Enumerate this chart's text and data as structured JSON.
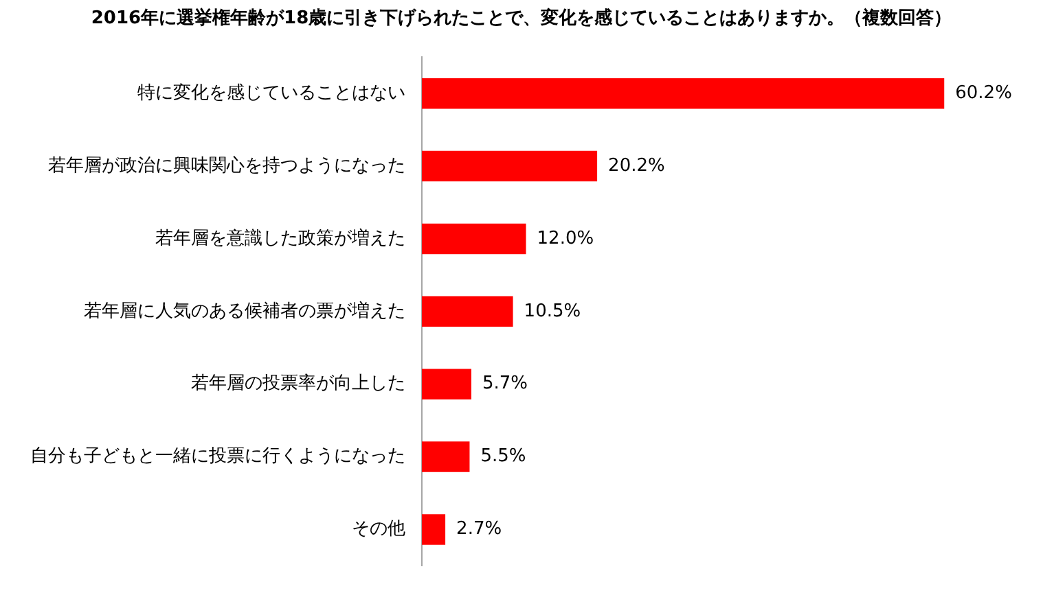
{
  "chart_data": {
    "type": "bar",
    "orientation": "horizontal",
    "title": "2016年に選挙権年齢が18歳に引き下げられたことで、変化を感じていることはありますか。（複数回答）",
    "categories": [
      "特に変化を感じていることはない",
      "若年層が政治に興味関心を持つようになった",
      "若年層を意識した政策が増えた",
      "若年層に人気のある候補者の票が増えた",
      "若年層の投票率が向上した",
      "自分も子どもと一緒に投票に行くようになった",
      "その他"
    ],
    "values": [
      60.2,
      20.2,
      12.0,
      10.5,
      5.7,
      5.5,
      2.7
    ],
    "value_labels": [
      "60.2%",
      "20.2%",
      "12.0%",
      "10.5%",
      "5.7%",
      "5.5%",
      "2.7%"
    ],
    "color": "#ff0000",
    "tick_labels": "y"
  }
}
